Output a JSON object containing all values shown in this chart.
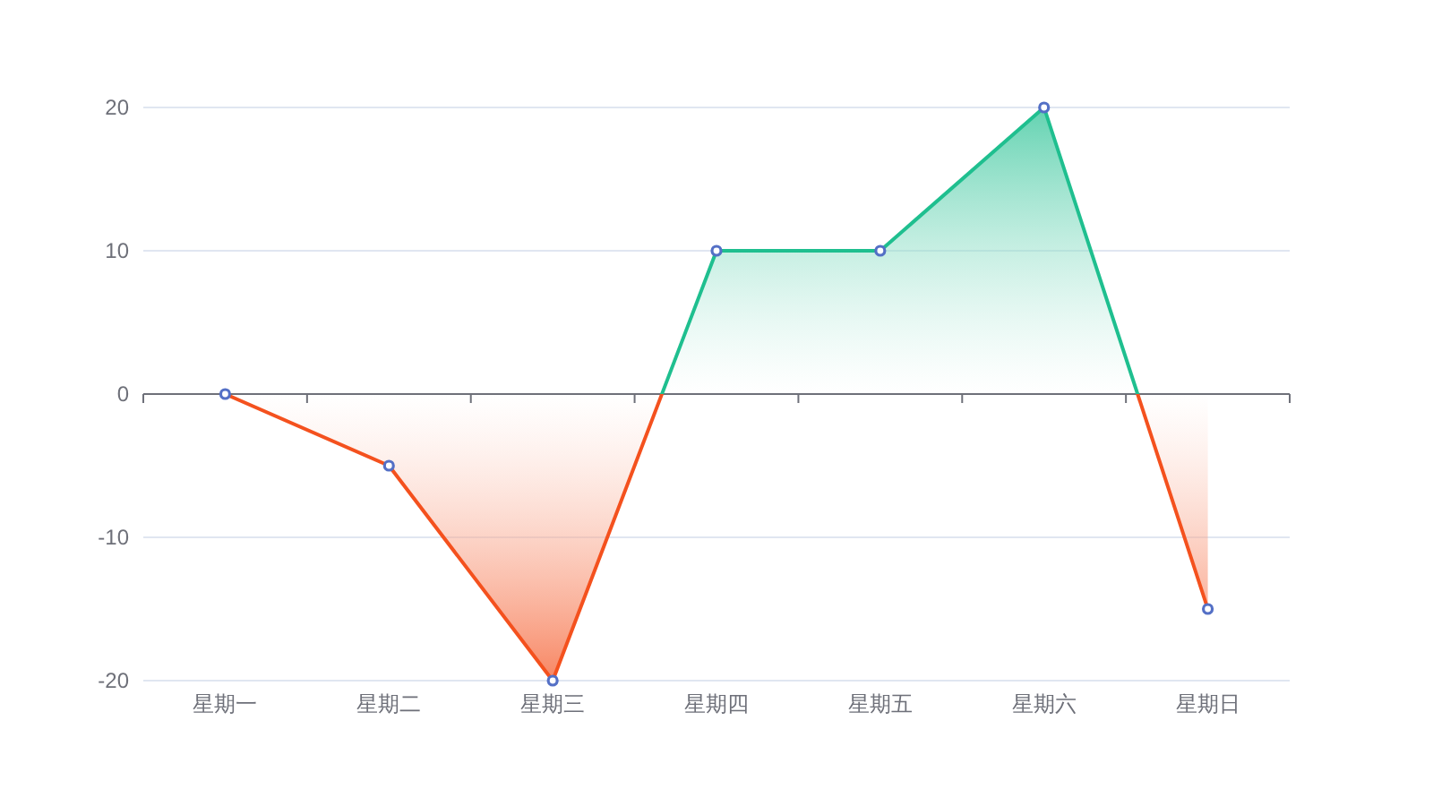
{
  "chart_data": {
    "type": "area",
    "categories": [
      "星期一",
      "星期二",
      "星期三",
      "星期四",
      "星期五",
      "星期六",
      "星期日"
    ],
    "series": [
      {
        "color": "#5470c6",
        "colors": [
          "#f4511e",
          "#f4511e",
          "#f4511e",
          "#1fbf8f",
          "#1fbf8f",
          "#1fbf8f",
          "#f4511e"
        ],
        "values": [
          0,
          -5,
          -20,
          10,
          10,
          20,
          -15
        ]
      }
    ],
    "ylim": [
      -20,
      20
    ],
    "yticks": [
      -20,
      -10,
      0,
      10,
      20
    ],
    "grid": "y",
    "marker": "circle",
    "line_style": "solid"
  }
}
